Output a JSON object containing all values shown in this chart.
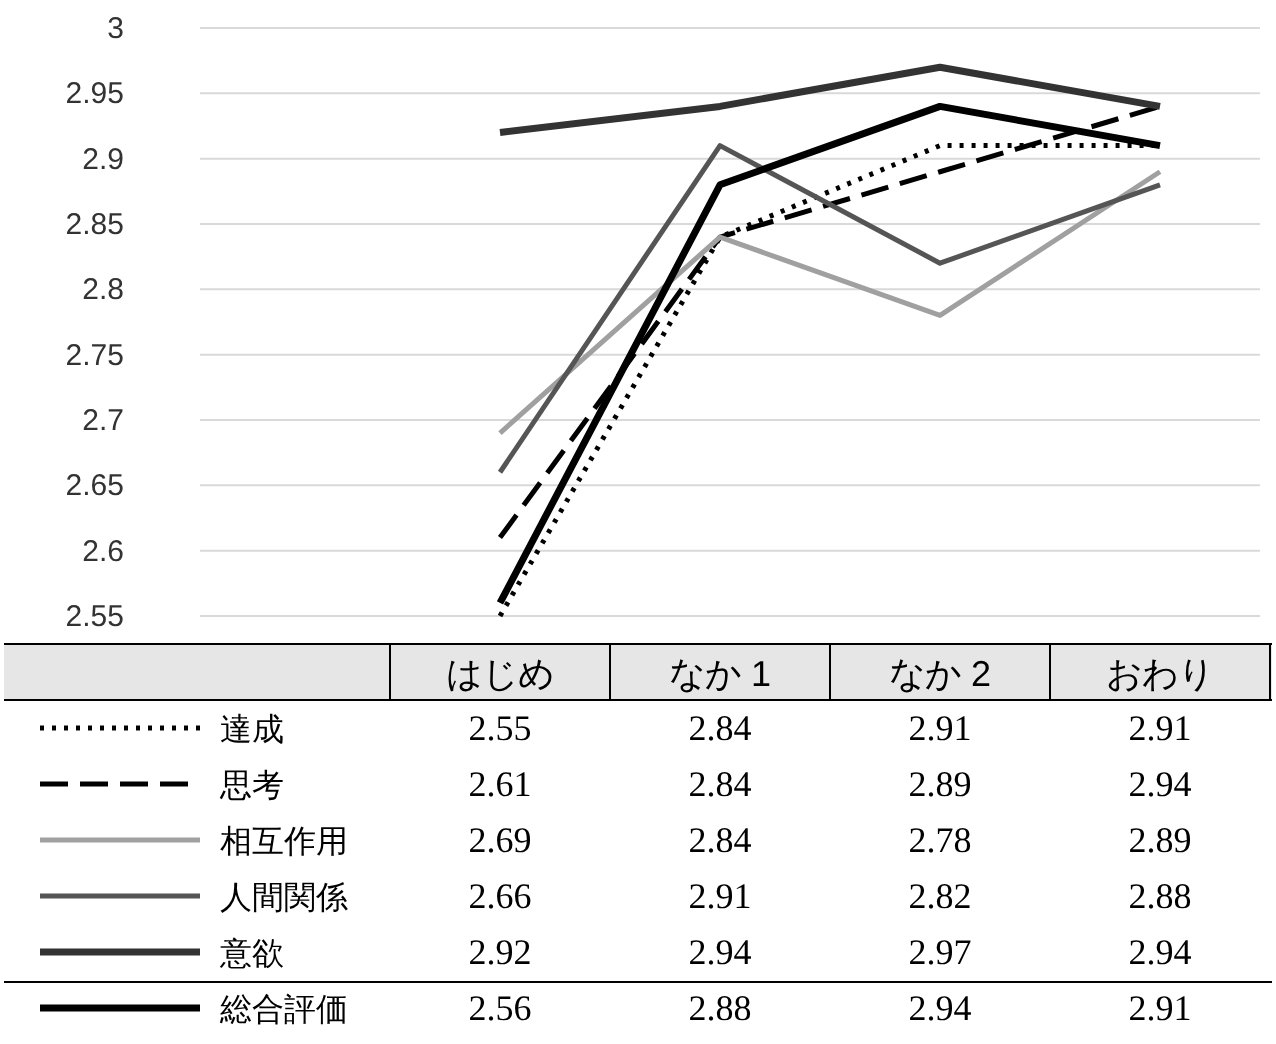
{
  "chart_data": {
    "type": "line",
    "categories": [
      "はじめ",
      "なか 1",
      "なか 2",
      "おわり"
    ],
    "series": [
      {
        "name": "達成",
        "color": "#000000",
        "line_style": "dotted",
        "values": [
          2.55,
          2.84,
          2.91,
          2.91
        ]
      },
      {
        "name": "思考",
        "color": "#000000",
        "line_style": "dashed",
        "values": [
          2.61,
          2.84,
          2.89,
          2.94
        ]
      },
      {
        "name": "相互作用",
        "color": "#a0a0a0",
        "line_style": "solid",
        "values": [
          2.69,
          2.84,
          2.78,
          2.89
        ]
      },
      {
        "name": "人間関係",
        "color": "#555555",
        "line_style": "solid",
        "values": [
          2.66,
          2.91,
          2.82,
          2.88
        ]
      },
      {
        "name": "意欲",
        "color": "#333333",
        "line_style": "solid",
        "values": [
          2.92,
          2.94,
          2.97,
          2.94
        ]
      },
      {
        "name": "総合評価",
        "color": "#000000",
        "line_style": "solid",
        "values": [
          2.56,
          2.88,
          2.94,
          2.91
        ]
      }
    ],
    "ylim": [
      2.55,
      3
    ],
    "yticks": [
      2.55,
      2.6,
      2.65,
      2.7,
      2.75,
      2.8,
      2.85,
      2.9,
      2.95,
      3
    ],
    "grid": "y",
    "legend": "bottom",
    "data_labels": true
  }
}
